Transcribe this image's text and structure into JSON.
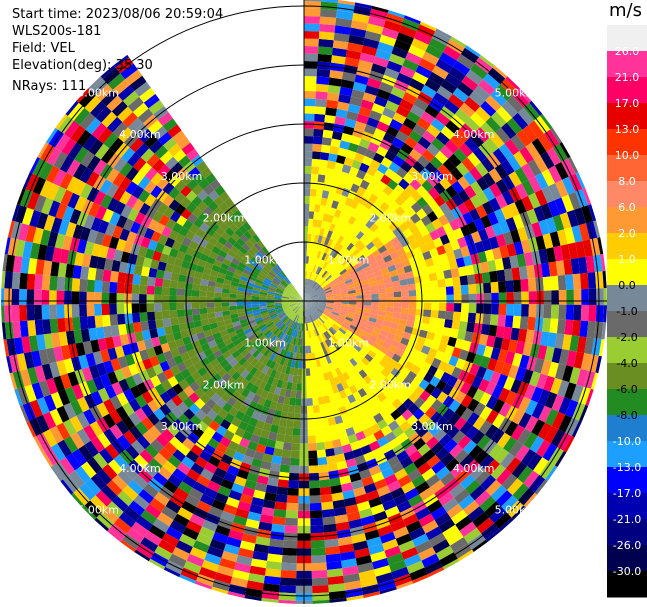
{
  "header": {
    "start_time": "Start time: 2023/08/06 20:59:04",
    "instrument": "WLS200s-181",
    "field": "Field: VEL",
    "elevation": "Elevation(deg): 35.30",
    "nrays": "NRays: 111"
  },
  "colorbar": {
    "unit": "m/s",
    "ticks": [
      "26.0",
      "21.0",
      "17.0",
      "13.0",
      "10.0",
      "8.0",
      "6.0",
      "2.0",
      "1.0",
      "0.0",
      "-1.0",
      "-2.0",
      "-4.0",
      "-6.0",
      "-8.0",
      "-10.0",
      "-13.0",
      "-17.0",
      "-21.0",
      "-26.0",
      "-30.0"
    ],
    "colors": [
      "#f0f0f0",
      "#ff3399",
      "#ff0066",
      "#e60000",
      "#ff3300",
      "#ff6633",
      "#ff8866",
      "#ff9933",
      "#ffcc00",
      "#ffff00",
      "#778899",
      "#6a6a6a",
      "#9acd32",
      "#6b8e23",
      "#228b22",
      "#1e7fd0",
      "#1c9fff",
      "#0000ff",
      "#0000b0",
      "#000080",
      "#000050",
      "#000000"
    ]
  },
  "chart_data": {
    "type": "heatmap",
    "title": "",
    "field": "VEL",
    "units": "m/s",
    "elevation_deg": 35.3,
    "n_rays": 111,
    "range_ring_labels_km": [
      "1.00km",
      "2.00km",
      "3.00km",
      "4.00km",
      "5.00km"
    ],
    "range_rings_km": [
      1,
      2,
      3,
      4,
      5
    ],
    "missing_sector_deg": [
      325,
      359
    ],
    "pattern": "positive velocities (yellow/orange) east of radar, negative (green) west; noisy multicolor at far range"
  }
}
